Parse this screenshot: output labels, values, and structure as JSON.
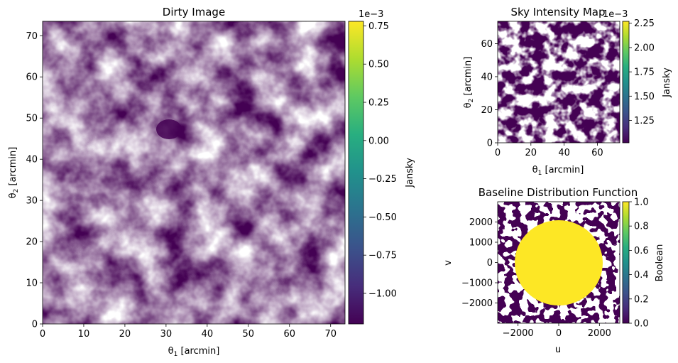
{
  "chart_data": [
    {
      "type": "heatmap",
      "title": "Dirty Image",
      "xlabel": "θ1 [arcmin]",
      "ylabel": "θ2 [arcmin]",
      "xlim": [
        0,
        73.5
      ],
      "ylim": [
        0,
        73.5
      ],
      "xticks": [
        0,
        10,
        20,
        30,
        40,
        50,
        60,
        70
      ],
      "yticks": [
        0,
        10,
        20,
        30,
        40,
        50,
        60,
        70
      ],
      "colormap": "viridis",
      "colorbar": {
        "label": "Jansky",
        "scale_note": "1e−3",
        "range": [
          -1.2,
          0.78
        ],
        "ticks": [
          "0.75",
          "0.50",
          "0.25",
          "0.00",
          "−0.25",
          "−0.50",
          "−0.75",
          "−1.00"
        ],
        "tick_values": [
          0.75,
          0.5,
          0.25,
          0.0,
          -0.25,
          -0.5,
          -0.75,
          -1.0
        ]
      }
    },
    {
      "type": "heatmap",
      "title": "Sky Intensity Map",
      "xlabel": "θ1 [arcmin]",
      "ylabel": "θ2 [arcmin]",
      "xlim": [
        0,
        73.5
      ],
      "ylim": [
        0,
        73.5
      ],
      "xticks": [
        0,
        20,
        40,
        60
      ],
      "yticks": [
        0,
        20,
        40,
        60
      ],
      "colormap": "viridis",
      "colorbar": {
        "label": "Jansky",
        "scale_note": "1e−3",
        "range": [
          1.02,
          2.27
        ],
        "ticks": [
          "2.25",
          "2.00",
          "1.75",
          "1.50",
          "1.25"
        ],
        "tick_values": [
          2.25,
          2.0,
          1.75,
          1.5,
          1.25
        ]
      }
    },
    {
      "type": "heatmap",
      "title": "Baseline Distribution Function",
      "xlabel": "u",
      "ylabel": "v",
      "xlim": [
        -3000,
        3000
      ],
      "ylim": [
        -3000,
        3000
      ],
      "xticks": [
        -2000,
        0,
        2000
      ],
      "xtick_labels": [
        "−2000",
        "0",
        "2000"
      ],
      "yticks": [
        2000,
        1000,
        0,
        -1000,
        -2000
      ],
      "ytick_labels": [
        "2000",
        "1000",
        "0",
        "−1000",
        "−2000"
      ],
      "colormap": "viridis",
      "colorbar": {
        "label": "Boolean",
        "range": [
          0,
          1
        ],
        "ticks": [
          "1.0",
          "0.8",
          "0.6",
          "0.4",
          "0.2",
          "0.0"
        ],
        "tick_values": [
          1.0,
          0.8,
          0.6,
          0.4,
          0.2,
          0.0
        ]
      }
    }
  ]
}
